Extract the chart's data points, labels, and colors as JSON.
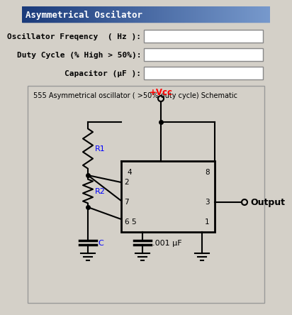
{
  "title": "Asymmetrical Oscilator",
  "bg_color": "#d4d0c8",
  "title_bg_left": "#1a3a7a",
  "title_bg_right": "#7799cc",
  "label1": "Oscillator Freqency  ( Hz ):",
  "label2": "Duty Cycle (% High > 50%):",
  "label3": "Capacitor (μF ):",
  "schematic_title": "555 Asymmetrical oscillator ( >50% duty cycle) Schematic",
  "vcc_label": "+Vcc",
  "output_label": "Output",
  "r1_label": "R1",
  "r2_label": "R2",
  "c_label": "C",
  "cap2_label": ".001 μF"
}
